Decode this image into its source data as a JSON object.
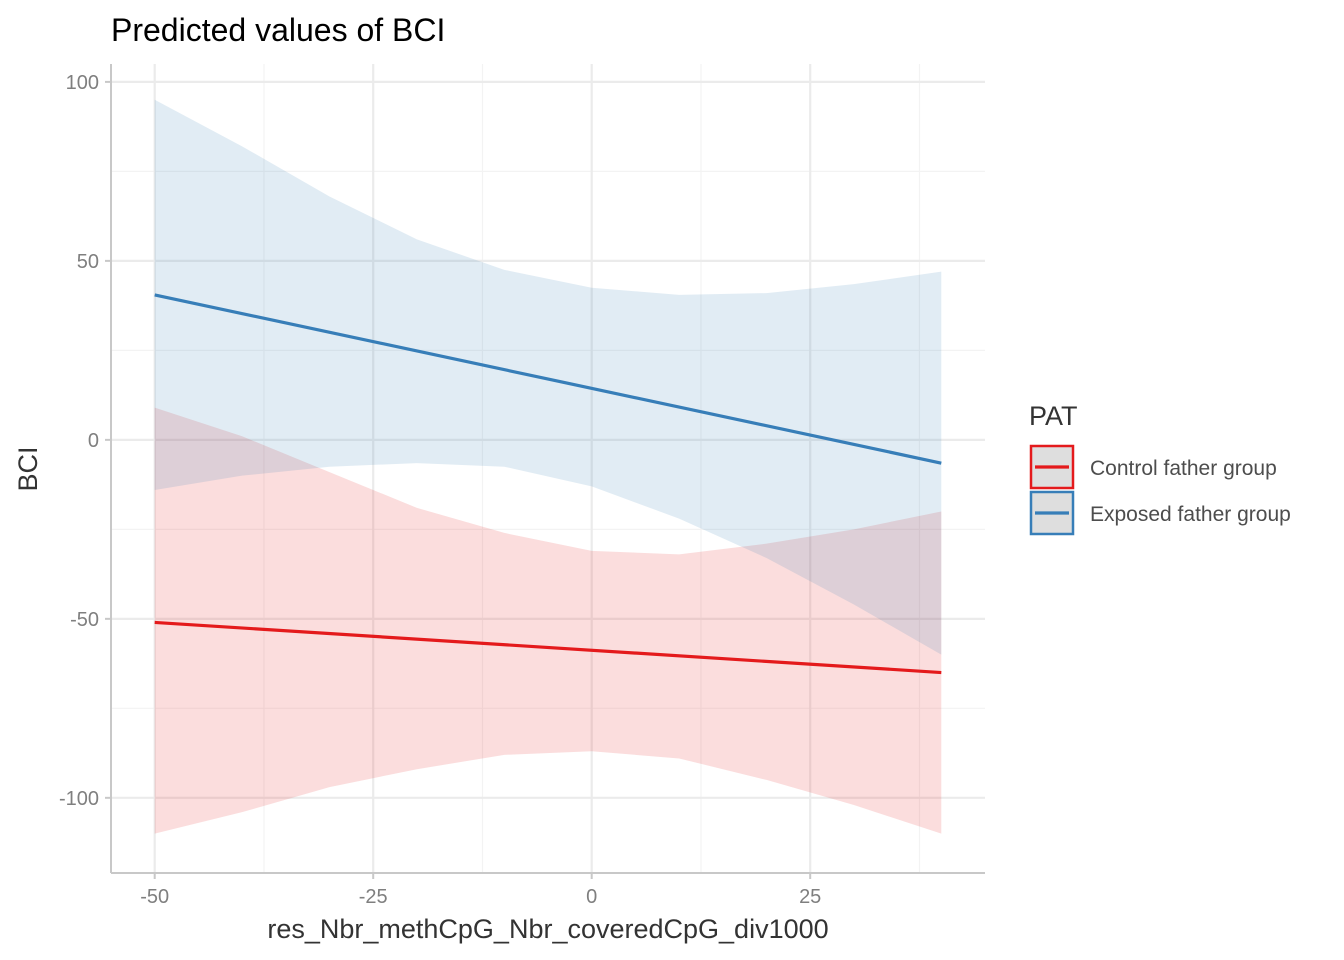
{
  "chart_data": {
    "type": "line",
    "title": "Predicted values of BCI",
    "xlabel": "res_Nbr_methCpG_Nbr_coveredCpG_div1000",
    "ylabel": "BCI",
    "xlim": [
      -55,
      45
    ],
    "ylim": [
      -121,
      105
    ],
    "x_ticks": [
      -50,
      -25,
      0,
      25
    ],
    "x_tick_labels": [
      "-50",
      "-25",
      "0",
      "25"
    ],
    "y_ticks": [
      -100,
      -50,
      0,
      50,
      100
    ],
    "y_tick_labels": [
      "-100",
      "-50",
      "0",
      "50",
      "100"
    ],
    "x_minor": [
      -37.5,
      -12.5,
      12.5,
      37.5
    ],
    "y_minor": [
      -75,
      -25,
      25,
      75
    ],
    "grid": true,
    "legend": {
      "title": "PAT",
      "position": "right"
    },
    "series": [
      {
        "name": "Control father group",
        "color": "#e41a1c",
        "x": [
          -50,
          40
        ],
        "y": [
          -51,
          -65
        ],
        "ci_x": [
          -50,
          -40,
          -30,
          -20,
          -10,
          0,
          10,
          20,
          30,
          40
        ],
        "ci_lower": [
          -110,
          -104,
          -97,
          -92,
          -88,
          -87,
          -89,
          -95,
          -102,
          -110
        ],
        "ci_upper": [
          9,
          1,
          -9,
          -19,
          -26,
          -31,
          -32,
          -29,
          -25,
          -20
        ]
      },
      {
        "name": "Exposed father group",
        "color": "#377eb8",
        "x": [
          -50,
          40
        ],
        "y": [
          40.5,
          -6.5
        ],
        "ci_x": [
          -50,
          -40,
          -30,
          -20,
          -10,
          0,
          10,
          20,
          30,
          40
        ],
        "ci_lower": [
          -14,
          -10,
          -7.5,
          -6.5,
          -7.5,
          -13,
          -22,
          -33,
          -46,
          -60
        ],
        "ci_upper": [
          95,
          82,
          68,
          56,
          47.5,
          42.5,
          40.5,
          41,
          43.5,
          47
        ]
      }
    ]
  }
}
